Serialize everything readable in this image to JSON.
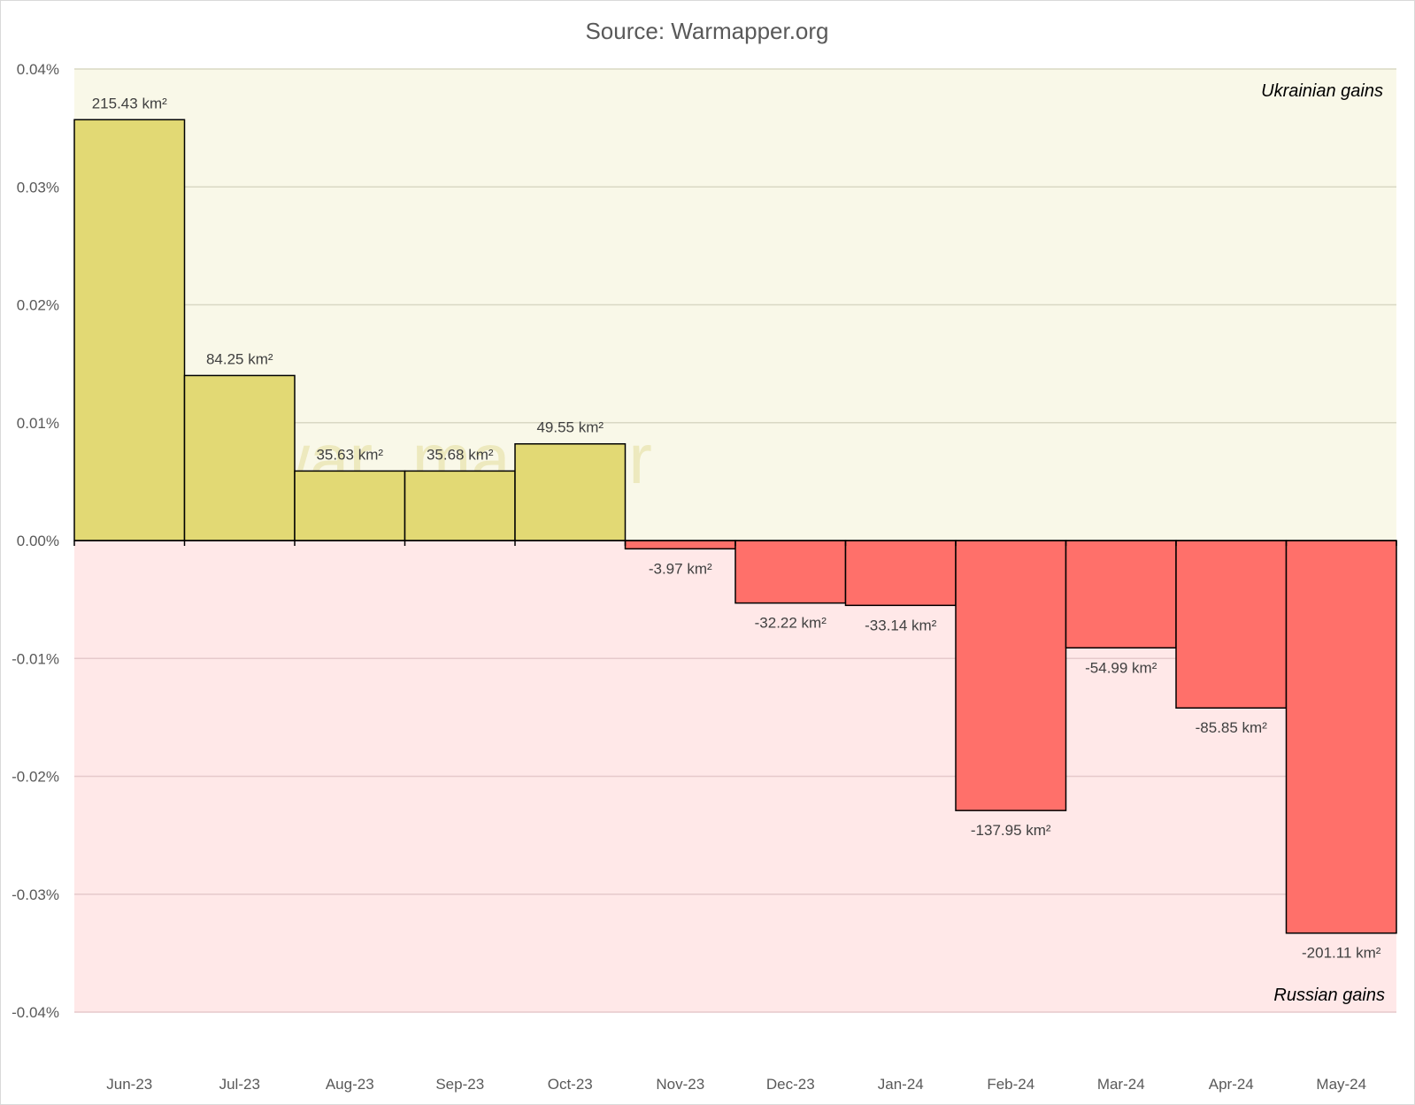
{
  "chart_data": {
    "type": "bar",
    "title": "Source: Warmapper.org",
    "categories": [
      "Jun-23",
      "Jul-23",
      "Aug-23",
      "Sep-23",
      "Oct-23",
      "Nov-23",
      "Dec-23",
      "Jan-24",
      "Feb-24",
      "Mar-24",
      "Apr-24",
      "May-24"
    ],
    "values": [
      0.0357,
      0.014,
      0.0059,
      0.0059,
      0.0082,
      -0.0007,
      -0.0053,
      -0.0055,
      -0.0229,
      -0.0091,
      -0.0142,
      -0.0333
    ],
    "data_labels": [
      "215.43 km²",
      "84.25 km²",
      "35.63 km²",
      "35.68 km²",
      "49.55 km²",
      "-3.97 km²",
      "-32.22 km²",
      "-33.14 km²",
      "-137.95 km²",
      "-54.99 km²",
      "-85.85 km²",
      "-201.11 km²"
    ],
    "ylim": [
      -0.04,
      0.04
    ],
    "yticks": [
      0.04,
      0.03,
      0.02,
      0.01,
      0.0,
      -0.01,
      -0.02,
      -0.03,
      -0.04
    ],
    "ytick_labels": [
      "0.04%",
      "0.03%",
      "0.02%",
      "0.01%",
      "0.00%",
      "-0.01%",
      "-0.02%",
      "-0.03%",
      "-0.04%"
    ],
    "xlabel": "",
    "ylabel": "",
    "grid": true,
    "positive_region_label": "Ukrainian gains",
    "negative_region_label": "Russian gains",
    "watermark_text": "@war_mapper",
    "colors": {
      "positive_bar": "#e2d974",
      "negative_bar": "#ff706a",
      "positive_background": "#f9f8e8",
      "negative_background": "#ffe8e8",
      "positive_grid": "#d9d8c4",
      "negative_grid": "#e6c9cb"
    }
  }
}
